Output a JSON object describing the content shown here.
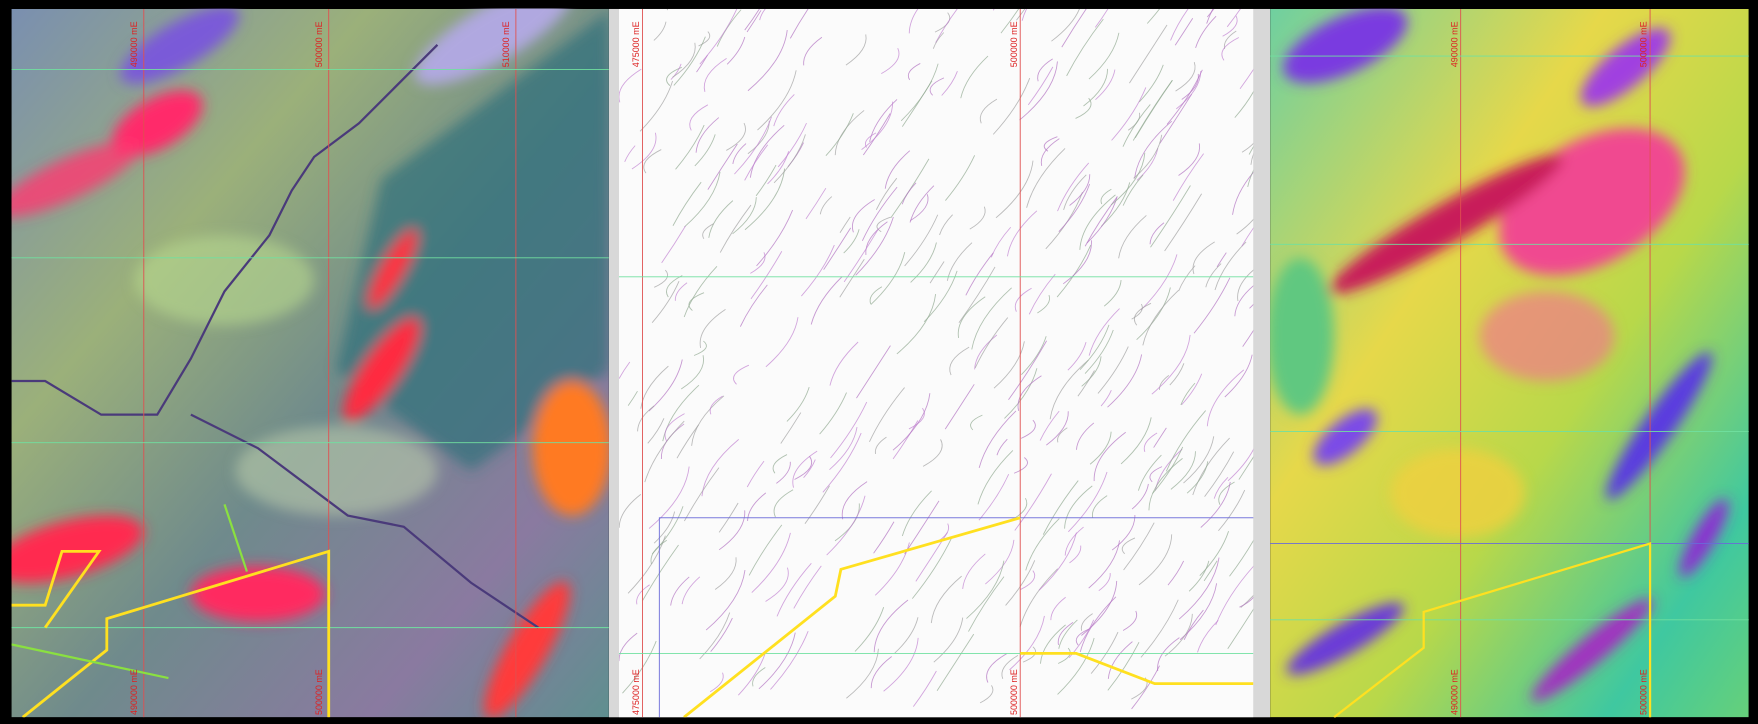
{
  "panels": [
    {
      "top_labels": [
        "490000 mE",
        "500000 mE",
        "510000 mE"
      ],
      "bottom_labels": [
        "490000 mE",
        "500000 mE"
      ]
    },
    {
      "top_labels": [
        "475000 mE",
        "500000 mE"
      ],
      "bottom_labels": [
        "475000 mE",
        "500000 mE"
      ]
    },
    {
      "top_labels": [
        "490000 mE",
        "500000 mE"
      ],
      "bottom_labels": [
        "490000 mE",
        "500000 mE"
      ]
    }
  ]
}
